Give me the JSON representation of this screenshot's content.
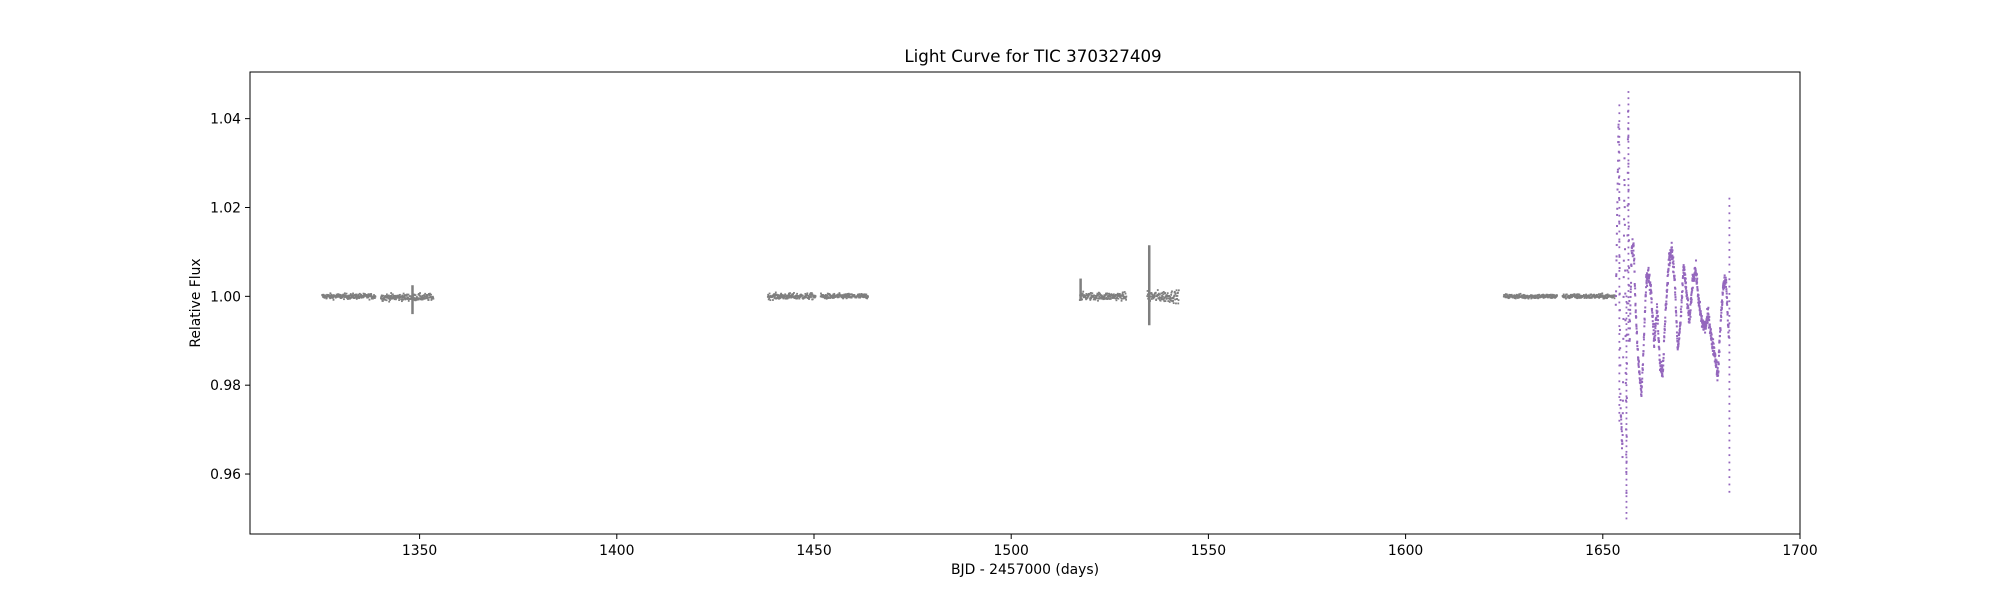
{
  "chart_data": {
    "type": "scatter",
    "title": "Light Curve for TIC 370327409",
    "xlabel": "BJD - 2457000 (days)",
    "ylabel": "Relative Flux",
    "xlim": [
      1307,
      1700
    ],
    "ylim": [
      0.9465,
      1.0505
    ],
    "xticks": [
      1350,
      1400,
      1450,
      1500,
      1550,
      1600,
      1650,
      1700
    ],
    "xtick_labels": [
      "1350",
      "1400",
      "1450",
      "1500",
      "1550",
      "1600",
      "1650",
      "1700"
    ],
    "yticks": [
      0.96,
      0.98,
      1.0,
      1.02,
      1.04
    ],
    "ytick_labels": [
      "0.96",
      "0.98",
      "1.00",
      "1.02",
      "1.04"
    ],
    "grid": false,
    "legend": "none",
    "colors": {
      "gray": "#7f7f7f",
      "purple": "#9467bd"
    },
    "series": [
      {
        "color": "gray",
        "segments": [
          {
            "x": [
              1325.3,
              1338.8
            ],
            "center": 1.0,
            "scatter": 0.0007
          },
          {
            "x": [
              1340.2,
              1353.5
            ],
            "center": 0.9998,
            "scatter": 0.0009
          },
          {
            "x": [
              1438.3,
              1450.4
            ],
            "center": 1.0,
            "scatter": 0.0008
          },
          {
            "x": [
              1451.7,
              1463.7
            ],
            "center": 1.0,
            "scatter": 0.0007
          },
          {
            "x": [
              1517.4,
              1529.2
            ],
            "center": 1.0,
            "scatter": 0.001
          },
          {
            "x": [
              1534.5,
              1542.5
            ],
            "center": 1.0,
            "scatter": 0.0015
          },
          {
            "x": [
              1624.9,
              1638.4
            ],
            "center": 1.0,
            "scatter": 0.0006
          },
          {
            "x": [
              1639.8,
              1653.1
            ],
            "center": 1.0,
            "scatter": 0.0006
          }
        ],
        "features": [
          {
            "x": 1517.6,
            "y": [
              0.999,
              1.004
            ]
          },
          {
            "x": 1535.0,
            "y": [
              0.9935,
              1.0115
            ]
          },
          {
            "x": 1348.2,
            "y": [
              0.996,
              1.0025
            ]
          }
        ]
      },
      {
        "color": "purple",
        "x": [
          1653.3,
          1654.0,
          1654.5,
          1655.0,
          1655.5,
          1656.0,
          1656.4,
          1656.8,
          1657.3,
          1657.8,
          1658.3,
          1659.0,
          1659.8,
          1660.5,
          1661.0,
          1661.6,
          1662.3,
          1663.0,
          1663.8,
          1664.5,
          1665.2,
          1666.0,
          1666.8,
          1667.5,
          1668.2,
          1669.0,
          1669.8,
          1670.5,
          1671.3,
          1672.0,
          1672.8,
          1673.6,
          1674.4,
          1675.2,
          1676.0,
          1676.8,
          1677.6,
          1678.4,
          1679.2,
          1679.8,
          1680.5,
          1681.2,
          1682.0
        ],
        "y": [
          0.998,
          1.04,
          0.975,
          0.965,
          1.03,
          0.955,
          1.042,
          0.99,
          1.01,
          1.012,
          0.998,
          0.985,
          0.978,
          0.992,
          1.003,
          1.005,
          1.001,
          0.99,
          0.997,
          0.985,
          0.983,
          0.998,
          1.008,
          1.011,
          1.004,
          0.988,
          0.995,
          1.007,
          1.0,
          0.994,
          1.004,
          1.006,
          0.998,
          0.994,
          0.993,
          0.996,
          0.99,
          0.987,
          0.982,
          0.993,
          1.002,
          1.004,
          0.99
        ],
        "spikes": [
          {
            "x": 1654.2,
            "y": [
              0.972,
              1.043
            ]
          },
          {
            "x": 1656.0,
            "y": [
              0.95,
              1.0
            ]
          },
          {
            "x": 1656.5,
            "y": [
              0.99,
              1.046
            ]
          },
          {
            "x": 1682.1,
            "y": [
              0.956,
              1.022
            ]
          }
        ]
      }
    ]
  }
}
